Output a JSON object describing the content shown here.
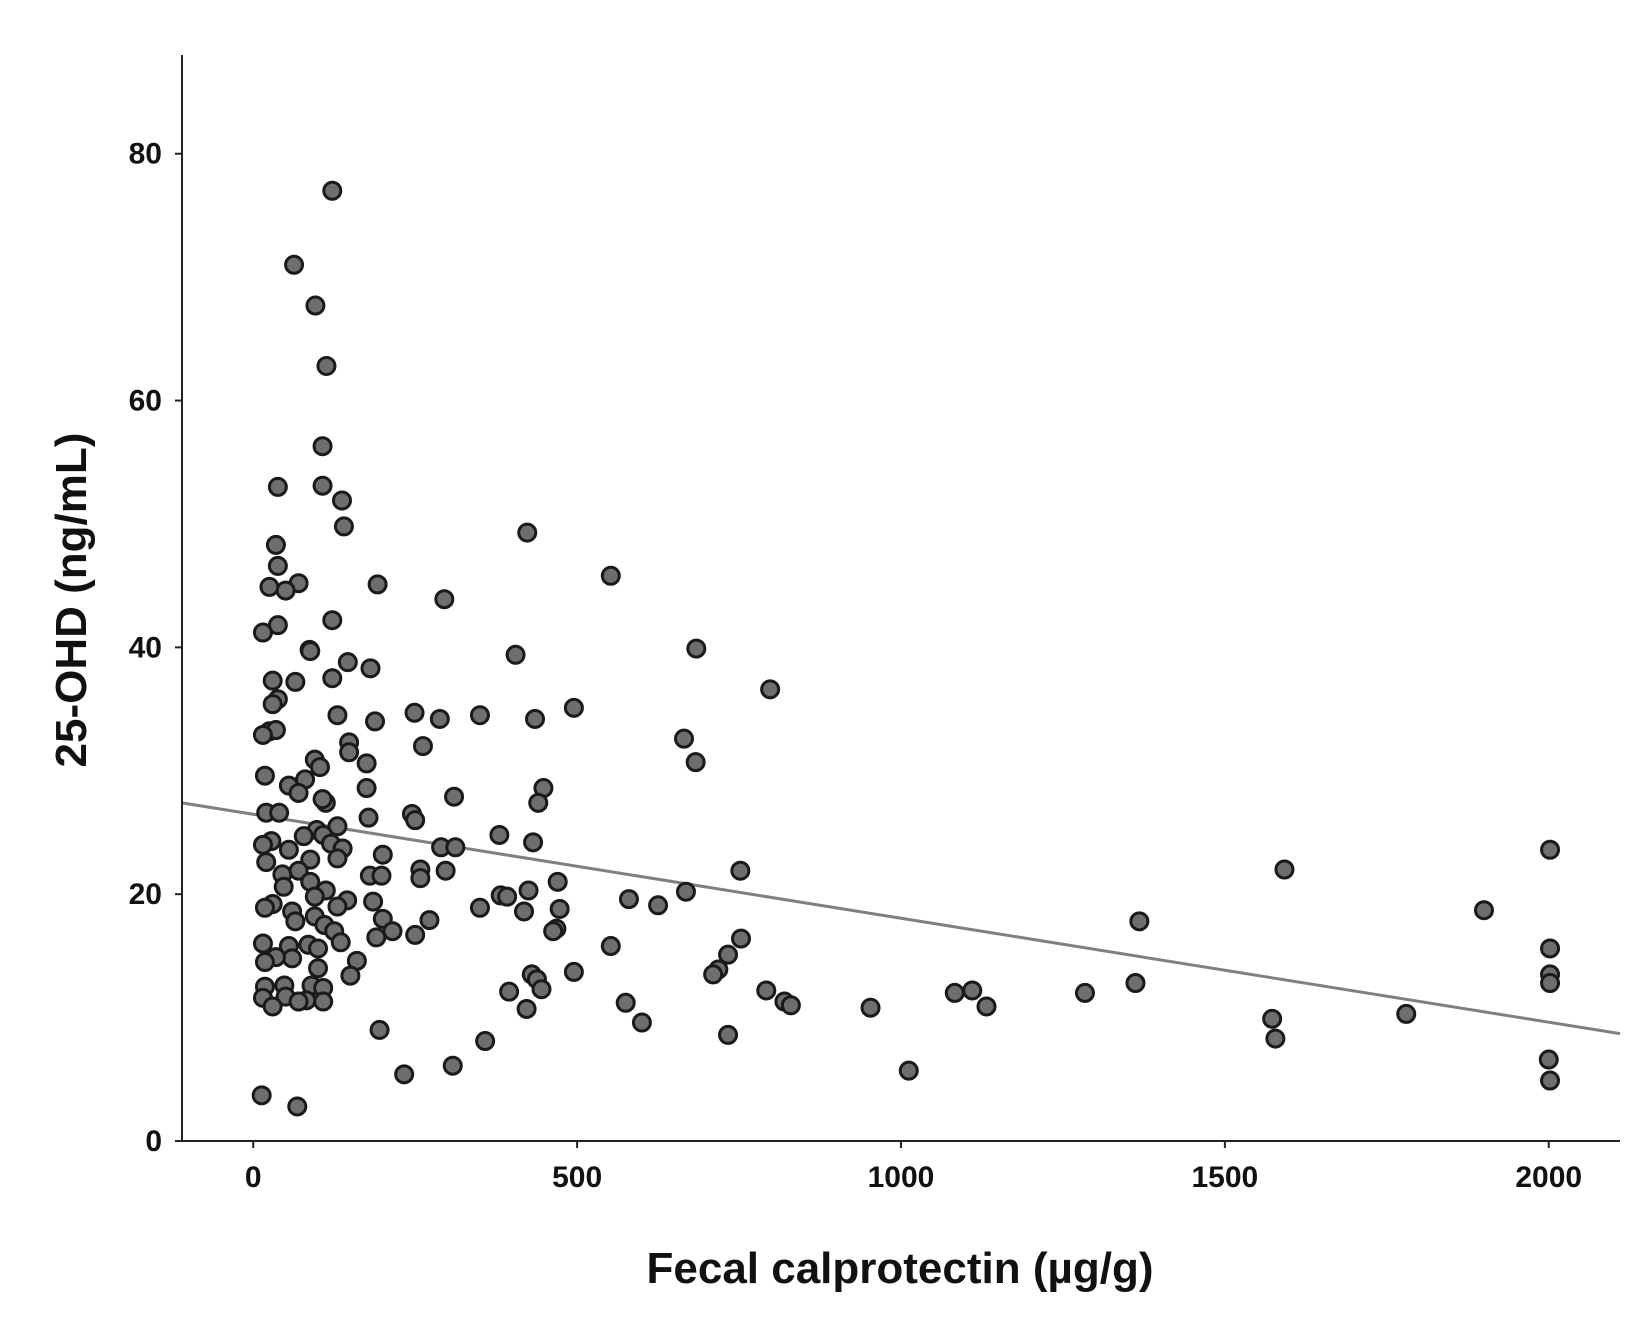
{
  "chart_data": {
    "type": "scatter",
    "xlabel": "Fecal calprotectin (µg/g)",
    "ylabel": "25-OHD (ng/mL)",
    "xlim": [
      -110,
      2110
    ],
    "ylim": [
      0,
      88
    ],
    "xticks": [
      0,
      500,
      1000,
      1500,
      2000
    ],
    "yticks": [
      0,
      20,
      40,
      60,
      80
    ],
    "grid": false,
    "colors": {
      "points": "#6e6e6e",
      "point_edge": "#1a1a1a",
      "fit_line": "#808080",
      "axis": "#222222"
    },
    "fit_line": {
      "x": [
        -110,
        2110
      ],
      "y": [
        27.4,
        8.7
      ]
    },
    "points": [
      [
        122,
        77.0
      ],
      [
        63,
        71.0
      ],
      [
        96,
        67.7
      ],
      [
        113,
        62.8
      ],
      [
        107,
        56.3
      ],
      [
        107,
        53.1
      ],
      [
        38,
        53.0
      ],
      [
        137,
        51.9
      ],
      [
        140,
        49.8
      ],
      [
        423,
        49.3
      ],
      [
        35,
        48.3
      ],
      [
        38,
        46.6
      ],
      [
        552,
        45.8
      ],
      [
        192,
        45.1
      ],
      [
        70,
        45.2
      ],
      [
        25,
        44.9
      ],
      [
        50,
        44.6
      ],
      [
        295,
        43.9
      ],
      [
        122,
        42.2
      ],
      [
        38,
        41.8
      ],
      [
        15,
        41.2
      ],
      [
        87,
        39.8
      ],
      [
        88,
        39.7
      ],
      [
        684,
        39.9
      ],
      [
        405,
        39.4
      ],
      [
        146,
        38.8
      ],
      [
        181,
        38.3
      ],
      [
        122,
        37.5
      ],
      [
        30,
        37.3
      ],
      [
        65,
        37.2
      ],
      [
        798,
        36.6
      ],
      [
        38,
        35.8
      ],
      [
        30,
        35.4
      ],
      [
        495,
        35.1
      ],
      [
        249,
        34.7
      ],
      [
        130,
        34.5
      ],
      [
        350,
        34.5
      ],
      [
        288,
        34.2
      ],
      [
        435,
        34.2
      ],
      [
        188,
        34.0
      ],
      [
        25,
        33.2
      ],
      [
        35,
        33.3
      ],
      [
        15,
        32.9
      ],
      [
        665,
        32.6
      ],
      [
        148,
        32.3
      ],
      [
        148,
        31.5
      ],
      [
        262,
        32.0
      ],
      [
        175,
        30.6
      ],
      [
        95,
        30.9
      ],
      [
        103,
        30.3
      ],
      [
        683,
        30.7
      ],
      [
        18,
        29.6
      ],
      [
        80,
        29.3
      ],
      [
        55,
        28.8
      ],
      [
        70,
        28.2
      ],
      [
        175,
        28.6
      ],
      [
        448,
        28.6
      ],
      [
        310,
        27.9
      ],
      [
        112,
        27.4
      ],
      [
        107,
        27.7
      ],
      [
        20,
        26.6
      ],
      [
        40,
        26.6
      ],
      [
        440,
        27.4
      ],
      [
        178,
        26.2
      ],
      [
        245,
        26.5
      ],
      [
        250,
        26.0
      ],
      [
        130,
        25.5
      ],
      [
        98,
        25.2
      ],
      [
        78,
        24.7
      ],
      [
        108,
        24.8
      ],
      [
        28,
        24.3
      ],
      [
        380,
        24.8
      ],
      [
        15,
        24.0
      ],
      [
        55,
        23.6
      ],
      [
        120,
        24.1
      ],
      [
        138,
        23.7
      ],
      [
        432,
        24.2
      ],
      [
        290,
        23.8
      ],
      [
        312,
        23.8
      ],
      [
        200,
        23.2
      ],
      [
        130,
        22.9
      ],
      [
        20,
        22.6
      ],
      [
        88,
        22.8
      ],
      [
        258,
        22.0
      ],
      [
        297,
        21.9
      ],
      [
        752,
        21.9
      ],
      [
        1592,
        22.0
      ],
      [
        2002,
        23.6
      ],
      [
        45,
        21.6
      ],
      [
        70,
        21.9
      ],
      [
        180,
        21.5
      ],
      [
        198,
        21.5
      ],
      [
        88,
        21.0
      ],
      [
        258,
        21.3
      ],
      [
        470,
        21.0
      ],
      [
        47,
        20.6
      ],
      [
        112,
        20.3
      ],
      [
        425,
        20.3
      ],
      [
        95,
        19.8
      ],
      [
        382,
        19.9
      ],
      [
        392,
        19.8
      ],
      [
        580,
        19.6
      ],
      [
        668,
        20.2
      ],
      [
        145,
        19.5
      ],
      [
        185,
        19.4
      ],
      [
        30,
        19.2
      ],
      [
        18,
        18.9
      ],
      [
        130,
        19.0
      ],
      [
        350,
        18.9
      ],
      [
        625,
        19.1
      ],
      [
        473,
        18.8
      ],
      [
        418,
        18.6
      ],
      [
        1900,
        18.7
      ],
      [
        60,
        18.6
      ],
      [
        95,
        18.2
      ],
      [
        200,
        18.0
      ],
      [
        65,
        17.8
      ],
      [
        272,
        17.9
      ],
      [
        110,
        17.5
      ],
      [
        1368,
        17.8
      ],
      [
        215,
        17.0
      ],
      [
        468,
        17.2
      ],
      [
        463,
        17.0
      ],
      [
        125,
        17.0
      ],
      [
        250,
        16.7
      ],
      [
        190,
        16.5
      ],
      [
        753,
        16.4
      ],
      [
        135,
        16.1
      ],
      [
        55,
        15.8
      ],
      [
        15,
        16.0
      ],
      [
        85,
        15.9
      ],
      [
        552,
        15.8
      ],
      [
        100,
        15.6
      ],
      [
        733,
        15.1
      ],
      [
        2002,
        15.6
      ],
      [
        60,
        14.8
      ],
      [
        160,
        14.6
      ],
      [
        35,
        14.9
      ],
      [
        18,
        14.5
      ],
      [
        100,
        14.0
      ],
      [
        495,
        13.7
      ],
      [
        718,
        13.9
      ],
      [
        710,
        13.5
      ],
      [
        150,
        13.4
      ],
      [
        430,
        13.5
      ],
      [
        438,
        13.1
      ],
      [
        2002,
        13.5
      ],
      [
        2002,
        12.8
      ],
      [
        48,
        12.6
      ],
      [
        1362,
        12.8
      ],
      [
        90,
        12.6
      ],
      [
        18,
        12.5
      ],
      [
        108,
        12.4
      ],
      [
        395,
        12.1
      ],
      [
        445,
        12.3
      ],
      [
        792,
        12.2
      ],
      [
        1284,
        12.0
      ],
      [
        1110,
        12.2
      ],
      [
        1083,
        12.0
      ],
      [
        15,
        11.6
      ],
      [
        50,
        11.7
      ],
      [
        82,
        11.4
      ],
      [
        70,
        11.3
      ],
      [
        108,
        11.3
      ],
      [
        575,
        11.2
      ],
      [
        820,
        11.3
      ],
      [
        830,
        11.0
      ],
      [
        30,
        10.9
      ],
      [
        422,
        10.7
      ],
      [
        953,
        10.8
      ],
      [
        1132,
        10.9
      ],
      [
        1573,
        9.9
      ],
      [
        1780,
        10.3
      ],
      [
        600,
        9.6
      ],
      [
        195,
        9.0
      ],
      [
        733,
        8.6
      ],
      [
        1578,
        8.3
      ],
      [
        358,
        8.1
      ],
      [
        2000,
        6.6
      ],
      [
        308,
        6.1
      ],
      [
        233,
        5.4
      ],
      [
        1012,
        5.7
      ],
      [
        2002,
        4.9
      ],
      [
        13,
        3.7
      ],
      [
        68,
        2.8
      ]
    ]
  }
}
